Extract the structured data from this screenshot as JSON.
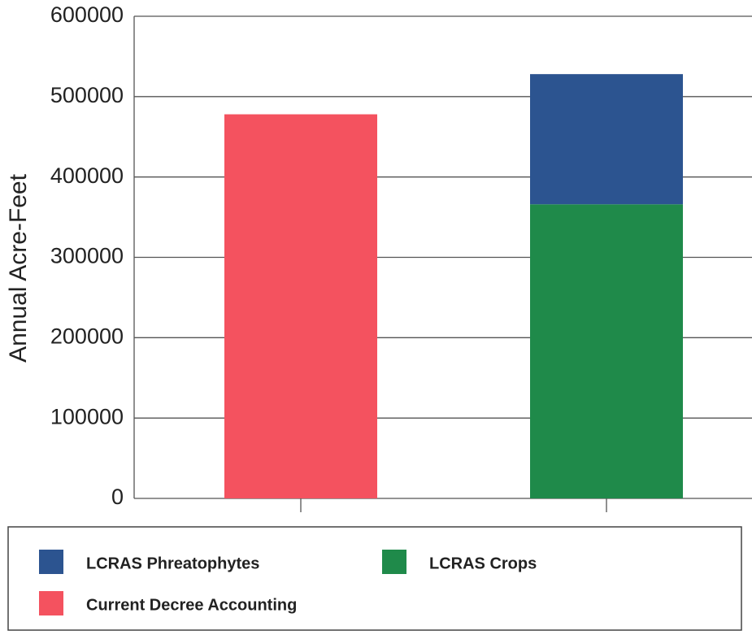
{
  "chart_data": {
    "type": "stacked_bar",
    "ylabel": "Annual Acre-Feet",
    "categories": [
      null,
      null
    ],
    "series": [
      {
        "name": "LCRAS Phreatophytes",
        "color": "#2c5490",
        "values": [
          null,
          162000
        ]
      },
      {
        "name": "LCRAS Crops",
        "color": "#1f8a4a",
        "values": [
          null,
          366000
        ]
      },
      {
        "name": "Current Decree Accounting",
        "color": "#f4525f",
        "values": [
          478000,
          null
        ]
      }
    ],
    "ylim": [
      0,
      600000
    ],
    "yticks": [
      0,
      100000,
      200000,
      300000,
      400000,
      500000,
      600000
    ],
    "grid": true,
    "legend": "bottom"
  }
}
